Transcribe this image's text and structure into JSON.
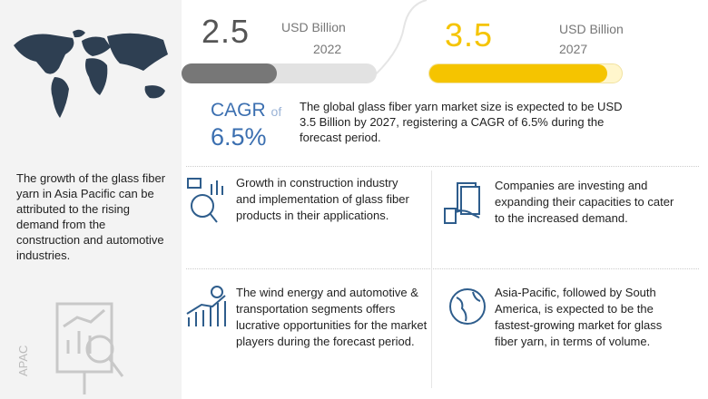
{
  "left_panel": {
    "text": "The growth of the glass fiber yarn in Asia Pacific can be attributed to the rising demand from the construction and automotive industries.",
    "region": "APAC"
  },
  "market_2022": {
    "value": "2.5",
    "unit": "USD Billion",
    "year": "2022"
  },
  "market_2027": {
    "value": "3.5",
    "unit": "USD Billion",
    "year": "2027"
  },
  "cagr": {
    "label": "CAGR",
    "of": "of",
    "value": "6.5%"
  },
  "summary": "The global glass fiber yarn market size is expected to be USD 3.5 Billion by 2027, registering a CAGR of 6.5% during the forecast period.",
  "highlights": [
    "Growth in construction industry and implementation of glass fiber products in their applications.",
    "Companies are investing and expanding their capacities to cater to the increased demand.",
    "The wind energy and automotive & transportation segments offers lucrative opportunities for the market players during the forecast period.",
    "Asia-Pacific, followed by South America, is expected to be the fastest-growing market for glass fiber yarn, in terms of volume."
  ]
}
